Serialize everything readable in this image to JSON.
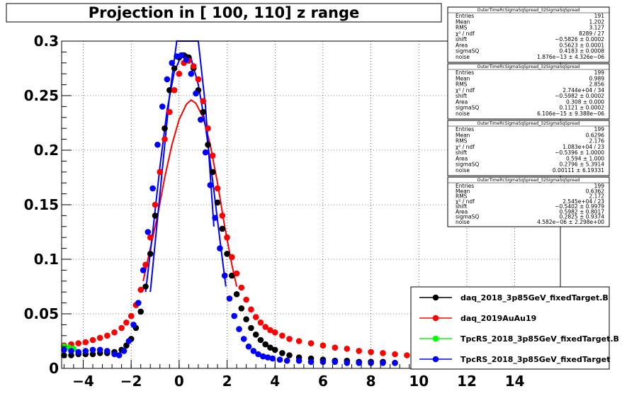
{
  "chart_data": {
    "type": "scatter",
    "title": "Projection in [ 100, 110] z range",
    "xlim": [
      -4.9,
      15.9
    ],
    "ylim": [
      0,
      0.3
    ],
    "x_ticks": [
      "−4",
      "−2",
      "0",
      "2",
      "4",
      "6",
      "8",
      "10",
      "12",
      "14"
    ],
    "x_tick_values": [
      -4,
      -2,
      0,
      2,
      4,
      6,
      8,
      10,
      12,
      14
    ],
    "y_ticks": [
      "0",
      "0.05",
      "0.1",
      "0.15",
      "0.2",
      "0.25",
      "0.3"
    ],
    "y_tick_values": [
      0,
      0.05,
      0.1,
      0.15,
      0.2,
      0.25,
      0.3
    ],
    "grid": true,
    "legend_position": "bottom-right",
    "series": [
      {
        "name": "daq_2018_3p85GeV_fixedTarget.B",
        "color": "#000000",
        "x": [
          -4.8,
          -4.5,
          -4.2,
          -3.9,
          -3.6,
          -3.3,
          -3.0,
          -2.7,
          -2.4,
          -2.2,
          -2.0,
          -1.8,
          -1.6,
          -1.4,
          -1.2,
          -1.0,
          -0.8,
          -0.6,
          -0.4,
          -0.2,
          0.0,
          0.2,
          0.4,
          0.6,
          0.8,
          1.0,
          1.2,
          1.4,
          1.6,
          1.8,
          2.0,
          2.2,
          2.4,
          2.6,
          2.8,
          3.0,
          3.2,
          3.4,
          3.6,
          3.8,
          4.0,
          4.3,
          4.6,
          5.0,
          5.5,
          6.0,
          6.5,
          7.0,
          7.5,
          8.0,
          8.5,
          9.0
        ],
        "y": [
          0.012,
          0.012,
          0.013,
          0.013,
          0.013,
          0.014,
          0.014,
          0.015,
          0.017,
          0.021,
          0.027,
          0.037,
          0.052,
          0.075,
          0.105,
          0.14,
          0.18,
          0.22,
          0.255,
          0.275,
          0.285,
          0.287,
          0.285,
          0.275,
          0.255,
          0.235,
          0.205,
          0.18,
          0.152,
          0.128,
          0.105,
          0.085,
          0.068,
          0.055,
          0.045,
          0.037,
          0.031,
          0.026,
          0.022,
          0.019,
          0.017,
          0.014,
          0.012,
          0.01,
          0.009,
          0.008,
          0.007,
          0.007,
          0.006,
          0.006,
          0.006,
          0.005
        ]
      },
      {
        "name": "daq_2019AuAu19",
        "color": "#ff0000",
        "x": [
          -4.8,
          -4.5,
          -4.2,
          -3.9,
          -3.6,
          -3.3,
          -3.0,
          -2.7,
          -2.4,
          -2.2,
          -2.0,
          -1.8,
          -1.6,
          -1.4,
          -1.2,
          -1.0,
          -0.8,
          -0.6,
          -0.4,
          -0.2,
          0.0,
          0.2,
          0.4,
          0.6,
          0.8,
          1.0,
          1.2,
          1.4,
          1.6,
          1.8,
          2.0,
          2.2,
          2.4,
          2.6,
          2.8,
          3.0,
          3.2,
          3.4,
          3.6,
          3.8,
          4.0,
          4.3,
          4.6,
          5.0,
          5.5,
          6.0,
          6.5,
          7.0,
          7.5,
          8.0,
          8.5,
          9.0,
          9.5
        ],
        "y": [
          0.021,
          0.022,
          0.023,
          0.024,
          0.026,
          0.028,
          0.03,
          0.033,
          0.037,
          0.042,
          0.048,
          0.058,
          0.072,
          0.095,
          0.12,
          0.15,
          0.18,
          0.21,
          0.235,
          0.255,
          0.27,
          0.28,
          0.282,
          0.277,
          0.265,
          0.245,
          0.22,
          0.195,
          0.165,
          0.14,
          0.12,
          0.102,
          0.087,
          0.074,
          0.063,
          0.054,
          0.047,
          0.042,
          0.038,
          0.035,
          0.033,
          0.03,
          0.027,
          0.025,
          0.023,
          0.021,
          0.019,
          0.018,
          0.016,
          0.015,
          0.014,
          0.013,
          0.012
        ]
      },
      {
        "name": "TpcRS_2018_3p85GeV_fixedTarget.B",
        "color": "#00ff00",
        "x": [
          -4.8,
          -4.6,
          -4.4
        ],
        "y": [
          0.02,
          0.019,
          0.018
        ]
      },
      {
        "name": "TpcRS_2018_3p85GeV_fixedTarget",
        "color": "#0000ff",
        "x": [
          -4.8,
          -4.5,
          -4.2,
          -3.9,
          -3.6,
          -3.3,
          -3.0,
          -2.7,
          -2.5,
          -2.3,
          -2.1,
          -1.9,
          -1.7,
          -1.5,
          -1.3,
          -1.1,
          -0.9,
          -0.7,
          -0.5,
          -0.3,
          -0.1,
          0.1,
          0.3,
          0.5,
          0.7,
          0.9,
          1.1,
          1.3,
          1.5,
          1.7,
          1.9,
          2.1,
          2.3,
          2.5,
          2.7,
          2.9,
          3.1,
          3.3,
          3.5,
          3.7,
          3.9,
          4.2,
          4.5,
          5.0,
          5.5,
          6.0,
          6.5,
          7.0,
          7.5,
          8.0,
          8.5,
          9.0
        ],
        "y": [
          0.017,
          0.016,
          0.015,
          0.016,
          0.017,
          0.017,
          0.016,
          0.013,
          0.012,
          0.016,
          0.025,
          0.04,
          0.06,
          0.09,
          0.125,
          0.165,
          0.205,
          0.24,
          0.265,
          0.28,
          0.286,
          0.287,
          0.283,
          0.27,
          0.252,
          0.228,
          0.198,
          0.168,
          0.138,
          0.11,
          0.085,
          0.064,
          0.048,
          0.036,
          0.027,
          0.02,
          0.016,
          0.013,
          0.011,
          0.01,
          0.009,
          0.008,
          0.007,
          0.007,
          0.006,
          0.006,
          0.006,
          0.005,
          0.005,
          0.005,
          0.005,
          0.005
        ]
      }
    ],
    "fit_curves": [
      {
        "color": "#ff0000",
        "x": [
          -1.5,
          -1.2,
          -0.9,
          -0.6,
          -0.3,
          0.0,
          0.3,
          0.5,
          0.7,
          1.0,
          1.3,
          1.6,
          1.9,
          2.2,
          2.4
        ],
        "y": [
          0.08,
          0.11,
          0.14,
          0.175,
          0.205,
          0.228,
          0.242,
          0.246,
          0.243,
          0.23,
          0.205,
          0.17,
          0.13,
          0.095,
          0.075
        ]
      },
      {
        "color": "#0000ff",
        "x": [
          -1.4,
          -1.1,
          -0.8,
          -0.5,
          -0.2,
          0.1,
          0.3,
          0.5,
          0.8,
          1.1,
          1.4,
          1.7,
          1.95
        ],
        "y": [
          0.07,
          0.125,
          0.185,
          0.237,
          0.272,
          0.287,
          0.288,
          0.284,
          0.26,
          0.222,
          0.172,
          0.118,
          0.075
        ]
      },
      {
        "color": "#0000ff",
        "x": [
          -1.2,
          -0.8,
          -0.4,
          -0.1,
          0.2,
          0.5,
          0.8,
          1.1,
          1.45
        ],
        "y": [
          0.07,
          0.16,
          0.25,
          0.3,
          0.3,
          0.3,
          0.3,
          0.24,
          0.13
        ]
      }
    ]
  },
  "stats_boxes": [
    {
      "title": "OuterTimeRcSigmaSqSpread_32SigmaSqSpread",
      "rows": [
        {
          "label": "Entries",
          "value": "191"
        },
        {
          "label": "Mean",
          "value": "1.202"
        },
        {
          "label": "RMS",
          "value": "3.127"
        },
        {
          "label": "χ² / ndf",
          "value": "8289 / 27"
        },
        {
          "label": "shift",
          "value": "−0.5826 ± 0.0002"
        },
        {
          "label": "Area",
          "value": "0.5623 ± 0.0001"
        },
        {
          "label": "sigmaSQ",
          "value": "0.4183 ± 0.0008"
        },
        {
          "label": "noise",
          "value": "1.876e−13 ± 4.326e−06"
        }
      ]
    },
    {
      "title": "OuterTimeRcSigmaSqSpread_32SigmaSqSpread",
      "rows": [
        {
          "label": "Entries",
          "value": "199"
        },
        {
          "label": "Mean",
          "value": "0.989"
        },
        {
          "label": "RMS",
          "value": "2.856"
        },
        {
          "label": "χ² / ndf",
          "value": "2.744e+04 / 34"
        },
        {
          "label": "shift",
          "value": "−0.5982 ± 0.0002"
        },
        {
          "label": "Area",
          "value": "0.308 ± 0.000"
        },
        {
          "label": "sigmaSQ",
          "value": "0.1121 ± 0.0002"
        },
        {
          "label": "noise",
          "value": "6.106e−15 ± 9.388e−06"
        }
      ]
    },
    {
      "title": "OuterTimeRcSigmaSqSpread_32SigmaSqSpread",
      "rows": [
        {
          "label": "Entries",
          "value": "199"
        },
        {
          "label": "Mean",
          "value": "0.6296"
        },
        {
          "label": "RMS",
          "value": "2.176"
        },
        {
          "label": "χ² / ndf",
          "value": "1.083e+04 / 23"
        },
        {
          "label": "shift",
          "value": "−0.5396 ± 1.0000"
        },
        {
          "label": "Area",
          "value": "0.594 ± 1.000"
        },
        {
          "label": "sigmaSQ",
          "value": "0.2796 ± 5.3914"
        },
        {
          "label": "noise",
          "value": "0.00111 ± 6.19331"
        }
      ]
    },
    {
      "title": "OuterTimeRcSigmaSqSpread_32SigmaSqSpread",
      "rows": [
        {
          "label": "Entries",
          "value": "199"
        },
        {
          "label": "Mean",
          "value": "0.6362"
        },
        {
          "label": "RMS",
          "value": "2.172"
        },
        {
          "label": "χ² / ndf",
          "value": "2.545e+04 / 23"
        },
        {
          "label": "shift",
          "value": "−0.5402 ± 0.9979"
        },
        {
          "label": "Area",
          "value": "0.5982 ± 0.8017"
        },
        {
          "label": "sigmaSQ",
          "value": "0.2825 ± 0.9374"
        },
        {
          "label": "noise",
          "value": "4.582e−06 ± 2.298e+00"
        }
      ]
    }
  ]
}
